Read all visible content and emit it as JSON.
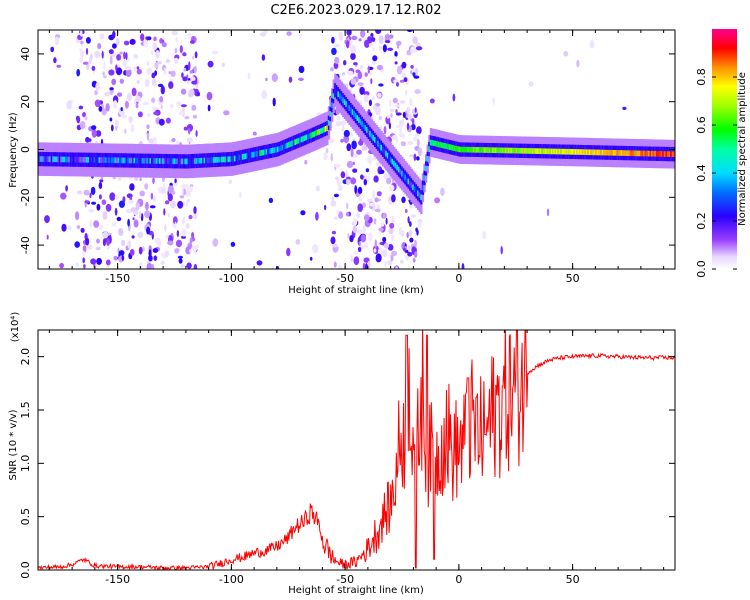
{
  "figure": {
    "title": "C2E6.2023.029.17.12.R02"
  },
  "chart_data": [
    {
      "type": "heatmap",
      "title": "C2E6.2023.029.17.12.R02",
      "xlabel": "Height of straight line (km)",
      "ylabel": "Frequency (Hz)",
      "xlim": [
        -185,
        95
      ],
      "ylim": [
        -50,
        50
      ],
      "x_ticks": [
        -150,
        -100,
        -50,
        0,
        50
      ],
      "x_tick_labels": [
        "-150",
        "-100",
        "-50",
        "0",
        "50"
      ],
      "y_ticks": [
        -40,
        -20,
        0,
        20,
        40
      ],
      "y_tick_labels": [
        "-40",
        "-20",
        "0",
        "20",
        "40"
      ],
      "colorbar": {
        "label": "Normalized spectral amplitude",
        "range": [
          0,
          1
        ],
        "ticks": [
          0.0,
          0.2,
          0.4,
          0.6,
          0.8
        ],
        "tick_labels": [
          "0.0",
          "0.2",
          "0.4",
          "0.6",
          "0.8"
        ],
        "colormap": "rainbow"
      },
      "ridge": {
        "description_x": [
          -185,
          -120,
          -100,
          -80,
          -65,
          -58,
          -55,
          -17,
          -13,
          0,
          50,
          95
        ],
        "center_freq": [
          -4,
          -5,
          -4,
          0,
          6,
          9,
          25,
          -20,
          3,
          0,
          -1,
          -2
        ],
        "amplitude": [
          0.25,
          0.3,
          0.35,
          0.4,
          0.5,
          0.6,
          0.35,
          0.3,
          0.5,
          0.6,
          0.75,
          0.9
        ]
      },
      "noise_regions": [
        {
          "x": [
            -185,
            -168
          ],
          "density": 0.08
        },
        {
          "x": [
            -168,
            -115
          ],
          "density": 0.6
        },
        {
          "x": [
            -115,
            -57
          ],
          "density": 0.05
        },
        {
          "x": [
            -56,
            -17
          ],
          "density": 0.75
        },
        {
          "x": [
            -17,
            95
          ],
          "density": 0.01
        }
      ]
    },
    {
      "type": "line",
      "xlabel": "Height of straight line (km)",
      "ylabel": "SNR (10 * v/v)",
      "yscale_label": "(x10⁴)",
      "xlim": [
        -185,
        95
      ],
      "ylim": [
        0,
        2.25
      ],
      "x_ticks": [
        -150,
        -100,
        -50,
        0,
        50
      ],
      "x_tick_labels": [
        "-150",
        "-100",
        "-50",
        "0",
        "50"
      ],
      "y_ticks": [
        0.0,
        0.5,
        1.0,
        1.5,
        2.0
      ],
      "y_tick_labels": [
        "0.0",
        "0.5",
        "1.0",
        "1.5",
        "2.0"
      ],
      "color": "#ff0000",
      "series": [
        {
          "x": [
            -185,
            -175,
            -170,
            -165,
            -160,
            -150,
            -140,
            -130,
            -120,
            -110,
            -105,
            -100,
            -95,
            -90,
            -85,
            -80,
            -75,
            -72,
            -68,
            -65,
            -62,
            -60,
            -58,
            -55,
            -52,
            -50,
            -45,
            -40,
            -35,
            -32,
            -30,
            -28,
            -26,
            -24,
            -22,
            -20,
            -18,
            -16,
            -14,
            -12,
            -10,
            -8,
            -5,
            -3,
            0,
            3,
            5,
            8,
            10,
            12,
            15,
            18,
            20,
            25,
            30,
            35,
            40,
            45,
            50,
            60,
            70,
            80,
            95
          ],
          "values": [
            0.02,
            0.03,
            0.05,
            0.1,
            0.04,
            0.03,
            0.03,
            0.02,
            0.02,
            0.03,
            0.06,
            0.1,
            0.12,
            0.16,
            0.18,
            0.22,
            0.3,
            0.4,
            0.45,
            0.55,
            0.45,
            0.3,
            0.2,
            0.1,
            0.06,
            0.05,
            0.08,
            0.2,
            0.4,
            0.55,
            0.6,
            0.85,
            1.2,
            1.3,
            1.8,
            1.3,
            1.2,
            1.7,
            1.05,
            1.1,
            1.0,
            1.2,
            1.3,
            1.1,
            1.15,
            1.2,
            1.4,
            1.3,
            1.25,
            1.3,
            1.45,
            1.55,
            1.6,
            1.7,
            1.85,
            1.92,
            1.97,
            1.99,
            2.0,
            2.01,
            2.0,
            1.99,
            1.99
          ],
          "spikes": [
            {
              "x": -23,
              "value": 2.2
            },
            {
              "x": -19,
              "value": 0.02
            },
            {
              "x": -14,
              "value": 2.2
            },
            {
              "x": -11,
              "value": 0.1
            },
            {
              "x": 4,
              "value": 1.8
            }
          ]
        }
      ]
    }
  ]
}
